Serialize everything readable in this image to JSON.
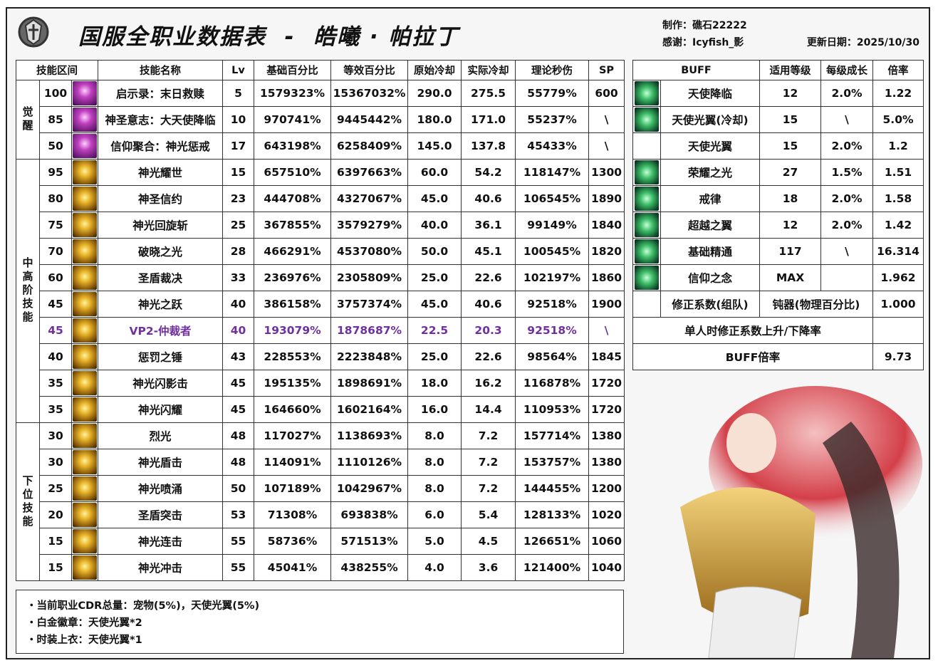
{
  "header": {
    "title": "国服全职业数据表  -  皓曦 · 帕拉丁",
    "author": "制作：礁石22222",
    "thanks": "感谢：Icyfish_影",
    "updated": "更新日期：2025/10/30"
  },
  "skills": {
    "columns": [
      "技能区间",
      "技能名称",
      "Lv",
      "基础百分比",
      "等效百分比",
      "原始冷却",
      "实际冷却",
      "理论秒伤",
      "SP"
    ],
    "accent_color": "#7030a0",
    "groups": [
      {
        "label": "觉醒",
        "rows": [
          [
            "100",
            "启示录：末日救赎",
            "5",
            "1579323%",
            "15367032%",
            "290.0",
            "275.5",
            "55779%",
            "600"
          ],
          [
            "85",
            "神圣意志：大天使降临",
            "10",
            "970741%",
            "9445442%",
            "180.0",
            "171.0",
            "55237%",
            "\\"
          ],
          [
            "50",
            "信仰聚合：神光惩戒",
            "17",
            "643198%",
            "6258409%",
            "145.0",
            "137.8",
            "45433%",
            "\\"
          ]
        ]
      },
      {
        "label": "中高阶技能",
        "accent_rows": [
          6
        ],
        "rows": [
          [
            "95",
            "神光耀世",
            "15",
            "657510%",
            "6397663%",
            "60.0",
            "54.2",
            "118147%",
            "1300"
          ],
          [
            "80",
            "神圣信约",
            "23",
            "444708%",
            "4327067%",
            "45.0",
            "40.6",
            "106545%",
            "1890"
          ],
          [
            "75",
            "神光回旋斩",
            "25",
            "367855%",
            "3579279%",
            "40.0",
            "36.1",
            "99149%",
            "1840"
          ],
          [
            "70",
            "破晓之光",
            "28",
            "466291%",
            "4537080%",
            "50.0",
            "45.1",
            "100545%",
            "1820"
          ],
          [
            "60",
            "圣盾裁决",
            "33",
            "236976%",
            "2305809%",
            "25.0",
            "22.6",
            "102197%",
            "1860"
          ],
          [
            "45",
            "神光之跃",
            "40",
            "386158%",
            "3757374%",
            "45.0",
            "40.6",
            "92518%",
            "1900"
          ],
          [
            "45",
            "VP2-仲裁者",
            "40",
            "193079%",
            "1878687%",
            "22.5",
            "20.3",
            "92518%",
            "\\"
          ],
          [
            "40",
            "惩罚之锤",
            "43",
            "228553%",
            "2223848%",
            "25.0",
            "22.6",
            "98564%",
            "1845"
          ],
          [
            "35",
            "神光闪影击",
            "45",
            "195135%",
            "1898691%",
            "18.0",
            "16.2",
            "116878%",
            "1720"
          ],
          [
            "35",
            "神光闪耀",
            "45",
            "164660%",
            "1602164%",
            "16.0",
            "14.4",
            "110953%",
            "1720"
          ]
        ]
      },
      {
        "label": "下位技能",
        "rows": [
          [
            "30",
            "烈光",
            "48",
            "117027%",
            "1138693%",
            "8.0",
            "7.2",
            "157714%",
            "1380"
          ],
          [
            "30",
            "神光盾击",
            "48",
            "114091%",
            "1110126%",
            "8.0",
            "7.2",
            "153757%",
            "1380"
          ],
          [
            "25",
            "神光喷涌",
            "50",
            "107189%",
            "1042967%",
            "8.0",
            "7.2",
            "144455%",
            "1200"
          ],
          [
            "20",
            "圣盾突击",
            "53",
            "71308%",
            "693838%",
            "6.0",
            "5.4",
            "128133%",
            "1020"
          ],
          [
            "15",
            "神光连击",
            "55",
            "58736%",
            "571513%",
            "5.0",
            "4.5",
            "126651%",
            "1060"
          ],
          [
            "15",
            "神光冲击",
            "55",
            "45041%",
            "438255%",
            "4.0",
            "3.6",
            "121400%",
            "1040"
          ]
        ]
      }
    ]
  },
  "buffs": {
    "columns": [
      "BUFF",
      "适用等级",
      "每级成长",
      "倍率"
    ],
    "no_icon_rows": [
      2
    ],
    "rows": [
      [
        "天使降临",
        "12",
        "2.0%",
        "1.22"
      ],
      [
        "天使光翼(冷却)",
        "15",
        "\\",
        "5.0%"
      ],
      [
        "天使光翼",
        "15",
        "2.0%",
        "1.2"
      ],
      [
        "荣耀之光",
        "27",
        "1.5%",
        "1.51"
      ],
      [
        "戒律",
        "18",
        "2.0%",
        "1.58"
      ],
      [
        "超越之翼",
        "12",
        "2.0%",
        "1.42"
      ],
      [
        "基础精通",
        "117",
        "\\",
        "16.314"
      ],
      [
        "信仰之念",
        "MAX",
        "",
        "1.962"
      ]
    ],
    "correction": [
      "修正系数(组队)",
      "钝器(物理百分比)",
      "1.000"
    ],
    "solo": "单人时修正系数上升/下降率",
    "total": [
      "BUFF倍率",
      "9.73"
    ]
  },
  "notes": [
    "・当前职业CDR总量：宠物(5%)，天使光翼(5%)",
    "・白金徽章：天使光翼*2",
    "・时装上衣：天使光翼*1"
  ]
}
